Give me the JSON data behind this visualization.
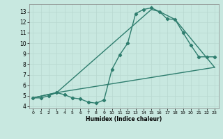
{
  "line1_x": [
    0,
    1,
    2,
    3,
    4,
    5,
    6,
    7,
    8,
    9,
    10,
    11,
    12,
    13,
    14,
    15,
    16,
    17,
    18,
    19,
    20,
    21,
    22,
    23
  ],
  "line1_y": [
    4.8,
    4.8,
    5.0,
    5.3,
    5.1,
    4.8,
    4.7,
    4.4,
    4.3,
    4.6,
    7.5,
    8.9,
    10.0,
    12.8,
    13.2,
    13.35,
    13.0,
    12.3,
    12.25,
    11.0,
    9.8,
    8.7,
    8.7,
    8.7
  ],
  "line2_x": [
    0,
    3,
    15,
    16,
    18,
    23
  ],
  "line2_y": [
    4.8,
    5.3,
    13.2,
    13.0,
    12.25,
    7.7
  ],
  "line3_x": [
    0,
    3,
    23
  ],
  "line3_y": [
    4.8,
    5.3,
    7.7
  ],
  "color": "#2e7d6e",
  "bg_color": "#c8e8e0",
  "grid_color": "#b8d8d0",
  "xlabel": "Humidex (Indice chaleur)",
  "xlim": [
    -0.5,
    23.5
  ],
  "ylim": [
    3.8,
    13.7
  ],
  "xticks": [
    0,
    1,
    2,
    3,
    4,
    5,
    6,
    7,
    8,
    9,
    10,
    11,
    12,
    13,
    14,
    15,
    16,
    17,
    18,
    19,
    20,
    21,
    22,
    23
  ],
  "yticks": [
    4,
    5,
    6,
    7,
    8,
    9,
    10,
    11,
    12,
    13
  ],
  "marker": "D",
  "markersize": 2.2,
  "linewidth": 1.0
}
